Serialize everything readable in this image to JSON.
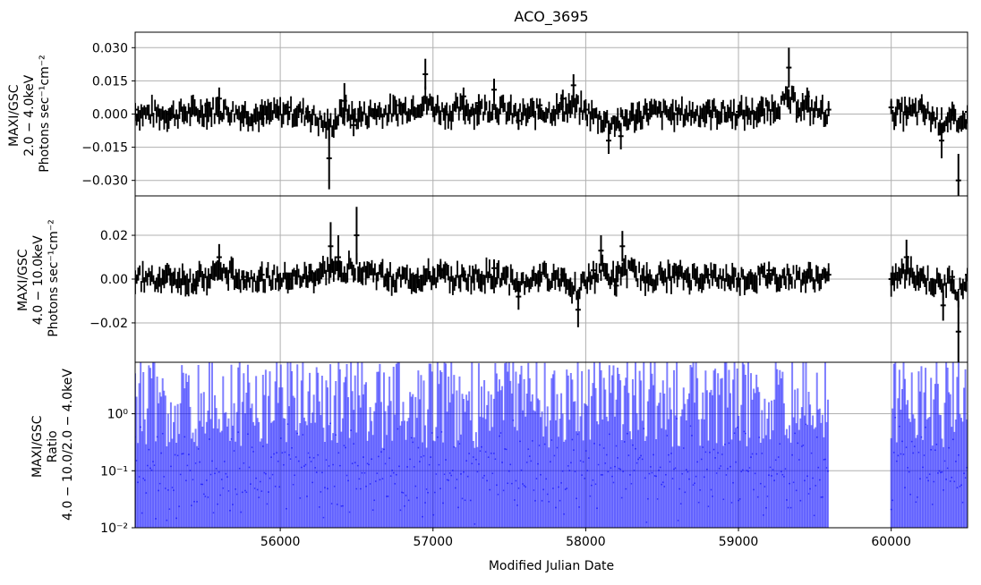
{
  "chart_data": {
    "type": "scatter",
    "title": "ACO_3695",
    "xlabel": "Modified Julian Date",
    "xlim": [
      55050,
      60500
    ],
    "x_ticks": [
      "56000",
      "57000",
      "58000",
      "59000",
      "60000"
    ],
    "x_tick_values": [
      56000,
      57000,
      58000,
      59000,
      60000
    ],
    "grid": true,
    "panels": [
      {
        "ylabel_lines": [
          "MAXI/GSC",
          "2.0 − 4.0keV",
          "Photons sec⁻¹cm⁻²"
        ],
        "ylim": [
          -0.037,
          0.037
        ],
        "y_ticks": [
          "0.030",
          "0.015",
          "0.000",
          "−0.015",
          "−0.030"
        ],
        "y_tick_values": [
          0.03,
          0.015,
          0.0,
          -0.015,
          -0.03
        ],
        "scale": "linear",
        "color": "#000000",
        "series": {
          "x": [
            55050,
            55280,
            55520,
            55600,
            55760,
            55880,
            56050,
            56180,
            56320,
            56420,
            56480,
            56620,
            56780,
            56950,
            57080,
            57200,
            57300,
            57400,
            57560,
            57700,
            57850,
            57920,
            58000,
            58150,
            58230,
            58400,
            58600,
            58800,
            59000,
            59150,
            59330,
            59450,
            59590,
            60000,
            60100,
            60200,
            60330,
            60400,
            60440,
            60500
          ],
          "y": [
            0.002,
            0.0,
            0.004,
            0.007,
            0.001,
            -0.002,
            0.003,
            0.001,
            -0.02,
            0.006,
            -0.005,
            0.002,
            0.004,
            0.018,
            0.001,
            0.008,
            0.005,
            0.011,
            -0.003,
            0.004,
            0.007,
            0.013,
            0.002,
            -0.012,
            -0.01,
            0.002,
            0.0,
            0.003,
            0.001,
            0.002,
            0.021,
            0.008,
            0.002,
            0.003,
            0.001,
            0.004,
            -0.012,
            0.002,
            -0.03,
            0.001
          ],
          "err": [
            0.003,
            0.003,
            0.003,
            0.005,
            0.003,
            0.003,
            0.003,
            0.003,
            0.014,
            0.008,
            0.005,
            0.003,
            0.003,
            0.007,
            0.003,
            0.004,
            0.004,
            0.005,
            0.004,
            0.003,
            0.004,
            0.005,
            0.003,
            0.006,
            0.006,
            0.003,
            0.003,
            0.003,
            0.003,
            0.003,
            0.009,
            0.004,
            0.003,
            0.003,
            0.003,
            0.003,
            0.008,
            0.003,
            0.012,
            0.003
          ]
        }
      },
      {
        "ylabel_lines": [
          "MAXI/GSC",
          "4.0 − 10.0keV",
          "Photons sec⁻¹cm⁻²"
        ],
        "ylim": [
          -0.038,
          0.038
        ],
        "y_ticks": [
          "0.02",
          "0.00",
          "−0.02"
        ],
        "y_tick_values": [
          0.02,
          0.0,
          -0.02
        ],
        "scale": "linear",
        "color": "#000000",
        "series": {
          "x": [
            55050,
            55280,
            55450,
            55600,
            55760,
            55880,
            56050,
            56200,
            56330,
            56380,
            56500,
            56700,
            56900,
            57050,
            57200,
            57400,
            57560,
            57700,
            57850,
            57950,
            58050,
            58100,
            58200,
            58240,
            58400,
            58600,
            58800,
            59000,
            59200,
            59330,
            59450,
            59590,
            60000,
            60020,
            60100,
            60200,
            60340,
            60400,
            60440,
            60500
          ],
          "y": [
            0.001,
            0.002,
            -0.003,
            0.01,
            0.001,
            0.002,
            0.0,
            0.003,
            0.015,
            0.01,
            0.02,
            0.002,
            0.001,
            0.004,
            0.002,
            0.005,
            -0.008,
            0.003,
            0.002,
            -0.014,
            0.004,
            0.013,
            -0.003,
            0.015,
            0.001,
            0.003,
            0.002,
            0.0,
            0.004,
            0.002,
            0.001,
            0.002,
            0.0,
            0.0,
            0.01,
            0.002,
            -0.012,
            0.001,
            -0.024,
            0.002
          ],
          "err": [
            0.003,
            0.003,
            0.004,
            0.006,
            0.003,
            0.003,
            0.003,
            0.004,
            0.011,
            0.01,
            0.013,
            0.003,
            0.003,
            0.004,
            0.003,
            0.004,
            0.006,
            0.004,
            0.003,
            0.008,
            0.004,
            0.007,
            0.005,
            0.007,
            0.003,
            0.003,
            0.003,
            0.003,
            0.004,
            0.003,
            0.003,
            0.003,
            0.003,
            0.003,
            0.008,
            0.003,
            0.007,
            0.003,
            0.014,
            0.003
          ]
        }
      },
      {
        "ylabel_lines": [
          "MAXI/GSC",
          "Ratio",
          "4.0 − 10.0/2.0 − 4.0keV"
        ],
        "ylim": [
          0.01,
          8
        ],
        "y_ticks": [
          "10⁰",
          "10⁻¹",
          "10⁻²"
        ],
        "y_tick_values": [
          1,
          0.1,
          0.01
        ],
        "scale": "log",
        "color": "#0000ff",
        "x_segments": [
          [
            55050,
            59590
          ],
          [
            60000,
            60500
          ]
        ]
      }
    ]
  }
}
